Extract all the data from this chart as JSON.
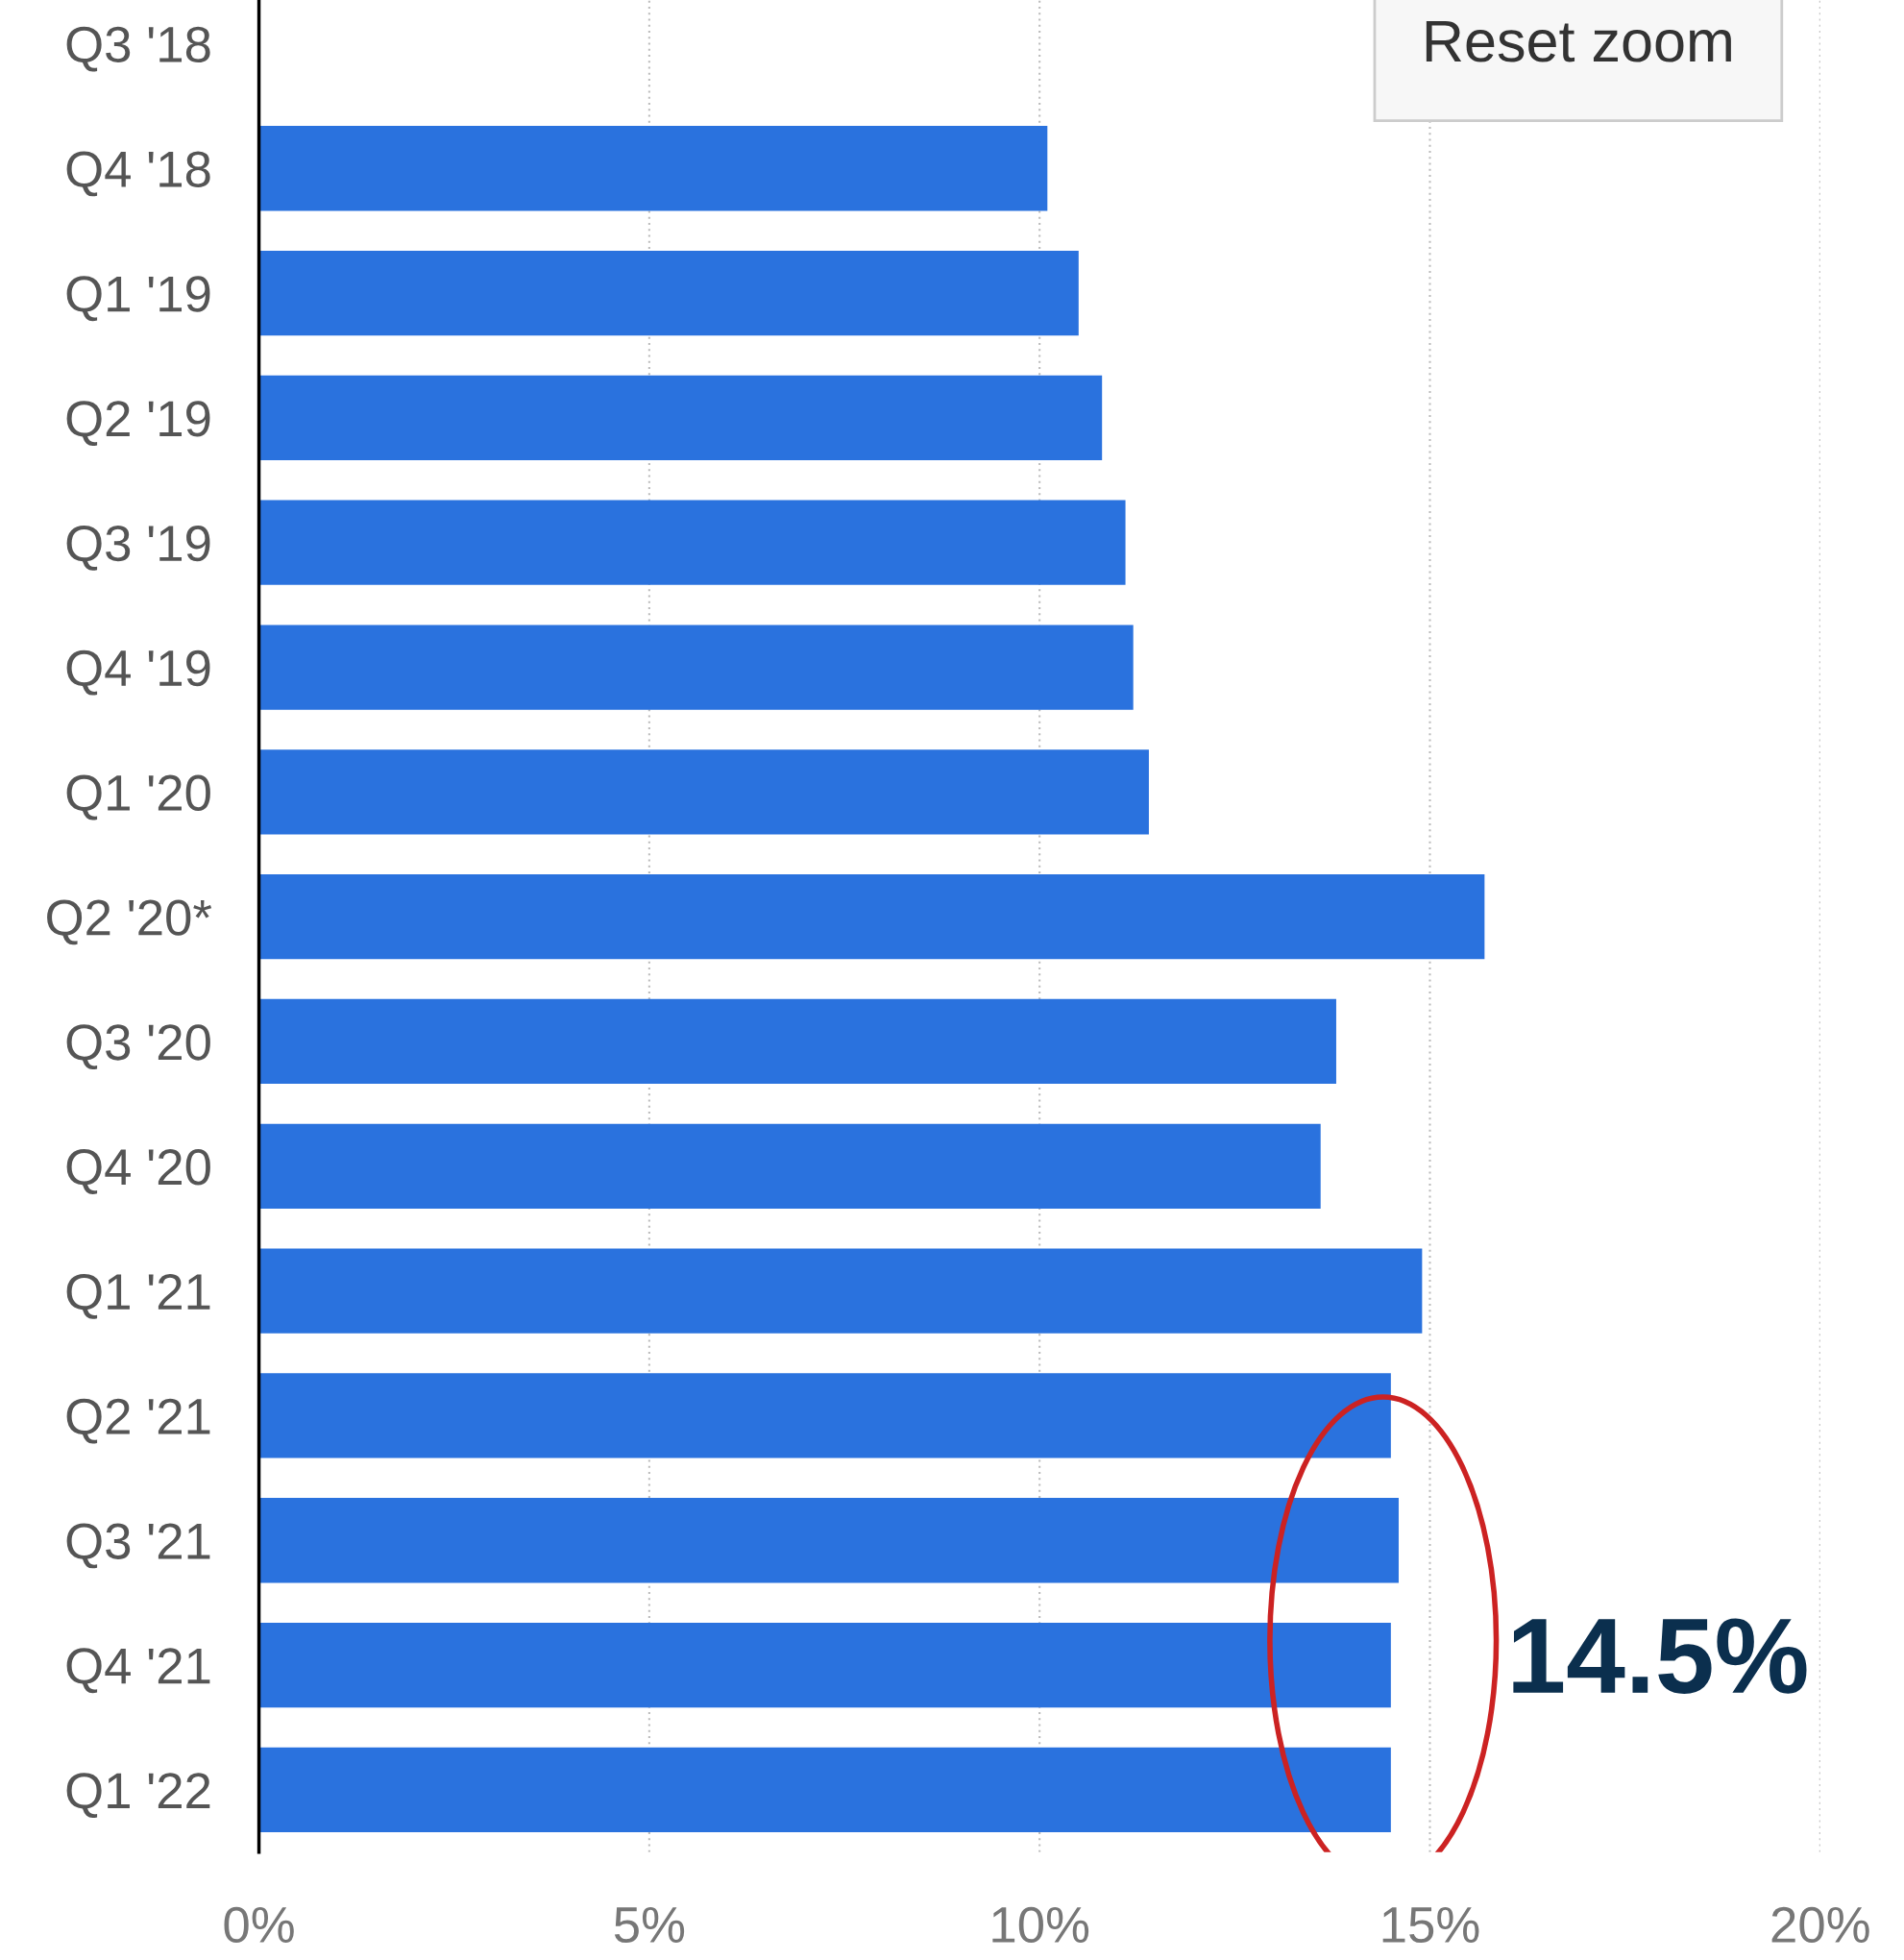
{
  "chart_data": {
    "type": "bar",
    "orientation": "horizontal",
    "color": "#2a72de",
    "categories": [
      "Q3 '18",
      "Q4 '18",
      "Q1 '19",
      "Q2 '19",
      "Q3 '19",
      "Q4 '19",
      "Q1 '20",
      "Q2 '20*",
      "Q3 '20",
      "Q4 '20",
      "Q1 '21",
      "Q2 '21",
      "Q3 '21",
      "Q4 '21",
      "Q1 '22"
    ],
    "values": [
      null,
      10.1,
      10.5,
      10.8,
      11.1,
      11.2,
      11.4,
      15.7,
      13.8,
      13.6,
      14.9,
      14.5,
      14.6,
      14.5,
      14.5
    ],
    "xlim": [
      0,
      20
    ],
    "xticks": [
      {
        "value": 0,
        "label": "0%"
      },
      {
        "value": 5,
        "label": "5%"
      },
      {
        "value": 10,
        "label": "10%"
      },
      {
        "value": 15,
        "label": "15%"
      },
      {
        "value": 20,
        "label": "20%"
      }
    ],
    "grid": "x",
    "annotations": [
      "Reset zoom",
      {
        "text": "14.5%",
        "x": 14.5,
        "y": "Q4 '21"
      }
    ]
  }
}
